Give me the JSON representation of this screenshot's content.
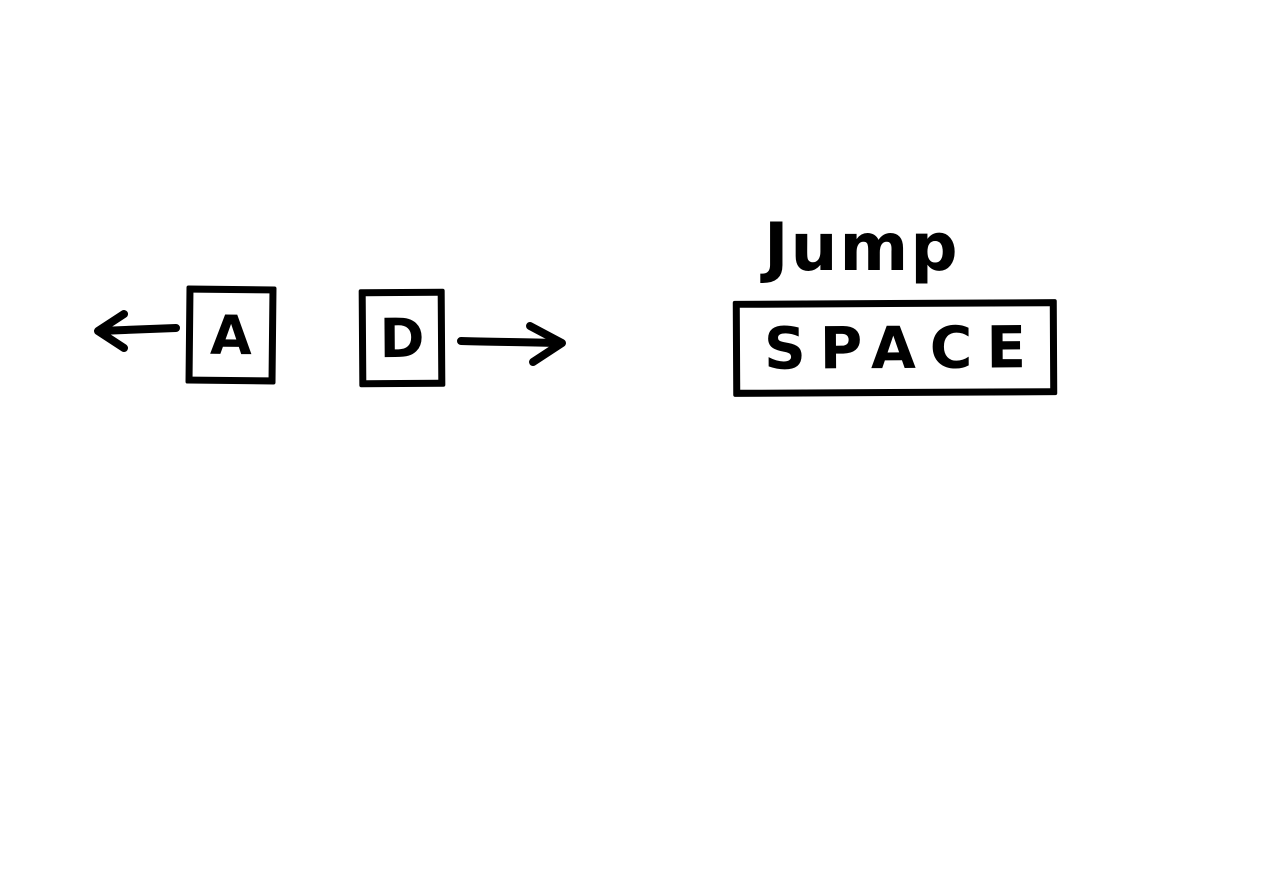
{
  "controls": {
    "left_key": "A",
    "right_key": "D",
    "jump_label": "Jump",
    "jump_key": "SPACE"
  },
  "icons": {
    "left": "arrow-left-icon",
    "right": "arrow-right-icon"
  },
  "colors": {
    "ink": "#000000",
    "background": "#ffffff"
  }
}
